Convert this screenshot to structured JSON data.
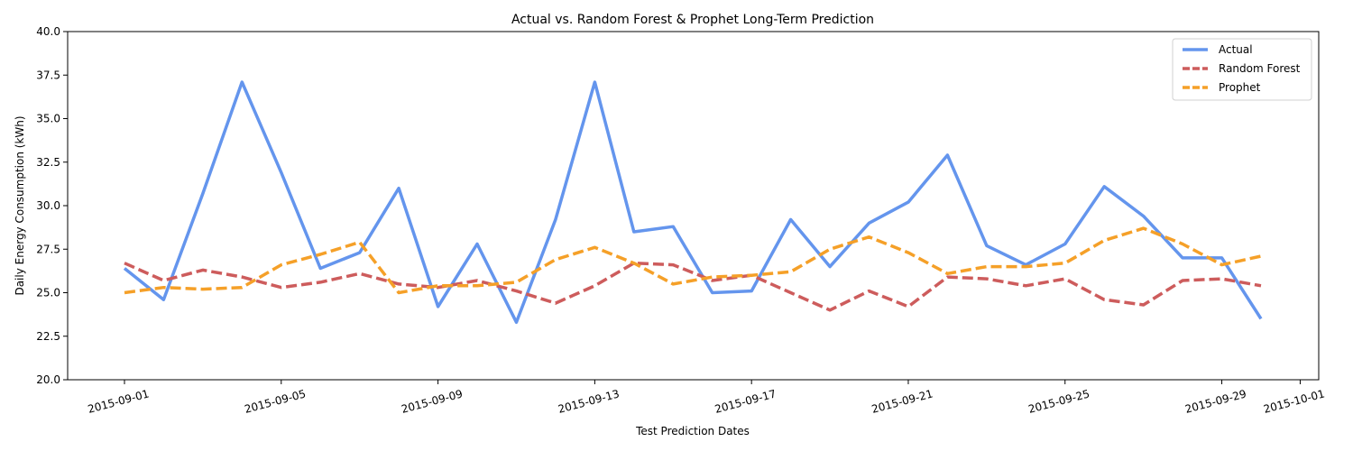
{
  "chart_data": {
    "type": "line",
    "title": "Actual vs. Random Forest & Prophet Long-Term Prediction",
    "xlabel": "Test Prediction Dates",
    "ylabel": "Daily Energy Consumption (kWh)",
    "ylim": [
      20.0,
      40.0
    ],
    "xlim": [
      "2015-08-30",
      "2015-10-01"
    ],
    "yticks": [
      "20.0",
      "22.5",
      "25.0",
      "27.5",
      "30.0",
      "32.5",
      "35.0",
      "37.5",
      "40.0"
    ],
    "xticks": [
      "2015-09-01",
      "2015-09-05",
      "2015-09-09",
      "2015-09-13",
      "2015-09-17",
      "2015-09-21",
      "2015-09-25",
      "2015-09-29",
      "2015-10-01"
    ],
    "grid": false,
    "legend_position": "top-right",
    "x": [
      "2015-09-01",
      "2015-09-02",
      "2015-09-03",
      "2015-09-04",
      "2015-09-05",
      "2015-09-06",
      "2015-09-07",
      "2015-09-08",
      "2015-09-09",
      "2015-09-10",
      "2015-09-11",
      "2015-09-12",
      "2015-09-13",
      "2015-09-14",
      "2015-09-15",
      "2015-09-16",
      "2015-09-17",
      "2015-09-18",
      "2015-09-19",
      "2015-09-20",
      "2015-09-21",
      "2015-09-22",
      "2015-09-23",
      "2015-09-24",
      "2015-09-25",
      "2015-09-26",
      "2015-09-27",
      "2015-09-28",
      "2015-09-29",
      "2015-09-30"
    ],
    "series": [
      {
        "name": "Actual",
        "color": "#6495ED",
        "style": "solid",
        "values": [
          26.4,
          24.6,
          30.7,
          37.1,
          31.9,
          26.4,
          27.3,
          31.0,
          24.2,
          27.8,
          23.3,
          29.2,
          37.1,
          28.5,
          28.8,
          25.0,
          25.1,
          29.2,
          26.5,
          29.0,
          30.2,
          32.9,
          27.7,
          26.6,
          27.8,
          31.1,
          29.4,
          27.0,
          27.0,
          23.5
        ]
      },
      {
        "name": "Random Forest",
        "color": "#CD5C5C",
        "style": "dashed",
        "values": [
          26.7,
          25.7,
          26.3,
          25.9,
          25.3,
          25.6,
          26.1,
          25.5,
          25.3,
          25.7,
          25.1,
          24.4,
          25.4,
          26.7,
          26.6,
          25.7,
          26.0,
          25.0,
          24.0,
          25.1,
          24.2,
          25.9,
          25.8,
          25.4,
          25.8,
          24.6,
          24.3,
          25.7,
          25.8,
          25.4
        ]
      },
      {
        "name": "Prophet",
        "color": "#F5A028",
        "style": "dashed",
        "values": [
          25.0,
          25.3,
          25.2,
          25.3,
          26.6,
          27.2,
          27.9,
          25.0,
          25.4,
          25.4,
          25.6,
          26.9,
          27.6,
          26.7,
          25.5,
          25.9,
          26.0,
          26.2,
          27.5,
          28.2,
          27.3,
          26.1,
          26.5,
          26.5,
          26.7,
          28.0,
          28.7,
          27.8,
          26.6,
          27.1
        ]
      }
    ]
  }
}
